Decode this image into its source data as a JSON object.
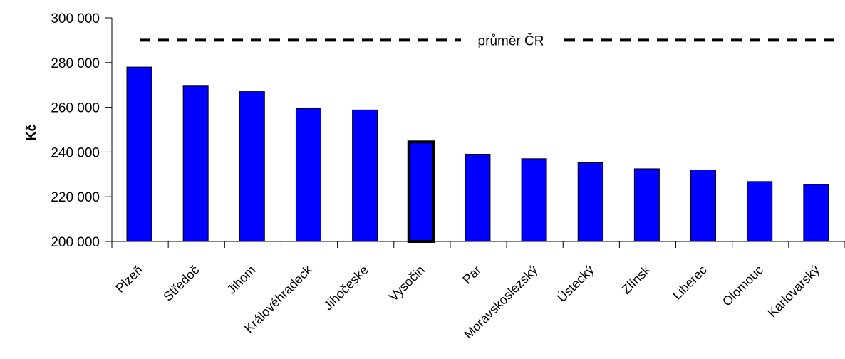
{
  "chart_data": {
    "type": "bar",
    "title": "",
    "xlabel": "",
    "ylabel": "Kč",
    "ylim": [
      200000,
      300000
    ],
    "yticks": [
      200000,
      220000,
      240000,
      260000,
      280000,
      300000
    ],
    "ytick_labels": [
      "200 000",
      "220 000",
      "240 000",
      "260 000",
      "280 000",
      "300 000"
    ],
    "categories": [
      "Plzeň",
      "Středoč",
      "Jihom",
      "Královéhradeck",
      "Jihočeské",
      "Vysočin",
      "Par",
      "Moravskoslezský",
      "Ústecký",
      "Zlínsk",
      "Liberec",
      "Olomouc",
      "Karlovarský"
    ],
    "values": [
      278000,
      269500,
      267000,
      259500,
      258800,
      244500,
      239000,
      237000,
      235200,
      232500,
      232000,
      226800,
      225500
    ],
    "highlighted_index": 5,
    "reference_line": {
      "label": "průměr ČR",
      "value": 290000,
      "style": "dashed"
    },
    "bar_color": "#0000ff",
    "grid": false
  }
}
